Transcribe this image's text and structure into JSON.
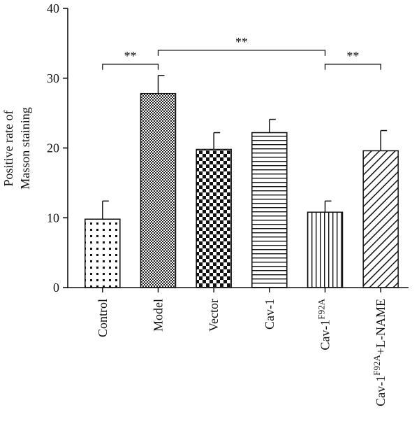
{
  "chart_data": {
    "type": "bar",
    "title": "",
    "xlabel": "",
    "ylabel_lines": [
      "Positive rate of",
      "Masson staining"
    ],
    "ylim": [
      0,
      40
    ],
    "yticks": [
      0,
      10,
      20,
      30,
      40
    ],
    "categories": [
      {
        "base": "Control",
        "sup": "",
        "tail": ""
      },
      {
        "base": "Model",
        "sup": "",
        "tail": ""
      },
      {
        "base": "Vector",
        "sup": "",
        "tail": ""
      },
      {
        "base": "Cav-1",
        "sup": "",
        "tail": ""
      },
      {
        "base": "Cav-1",
        "sup": "F92A",
        "tail": ""
      },
      {
        "base": "Cav-1",
        "sup": "F92A",
        "tail": "+L-NAME"
      }
    ],
    "values": [
      9.8,
      27.8,
      19.8,
      22.2,
      10.8,
      19.6
    ],
    "errors": [
      2.6,
      2.6,
      2.4,
      1.9,
      1.6,
      2.9
    ],
    "patterns": [
      "dots",
      "fine-grid",
      "checker",
      "hlines",
      "vlines",
      "diagonal"
    ],
    "significance": [
      {
        "from": 0,
        "to": 1,
        "y": 32,
        "label": "**"
      },
      {
        "from": 1,
        "to": 4,
        "y": 34,
        "label": "**"
      },
      {
        "from": 4,
        "to": 5,
        "y": 32,
        "label": "**"
      }
    ],
    "grid": false,
    "legend": "none"
  }
}
